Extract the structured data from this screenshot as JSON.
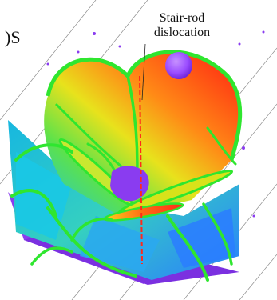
{
  "figure": {
    "corner_label": ")S",
    "annotation": {
      "line1": "Stair-rod",
      "line2": "dislocation"
    },
    "colors": {
      "background": "#ffffff",
      "purple": "#8a3cf0",
      "sphere": "#9b4dff",
      "green": "#2fe62f",
      "red": "#ff2a1a",
      "orange": "#ff8c1a",
      "yellow": "#d8e21a",
      "cyan": "#19c8e6",
      "blue": "#2a7cff"
    }
  }
}
